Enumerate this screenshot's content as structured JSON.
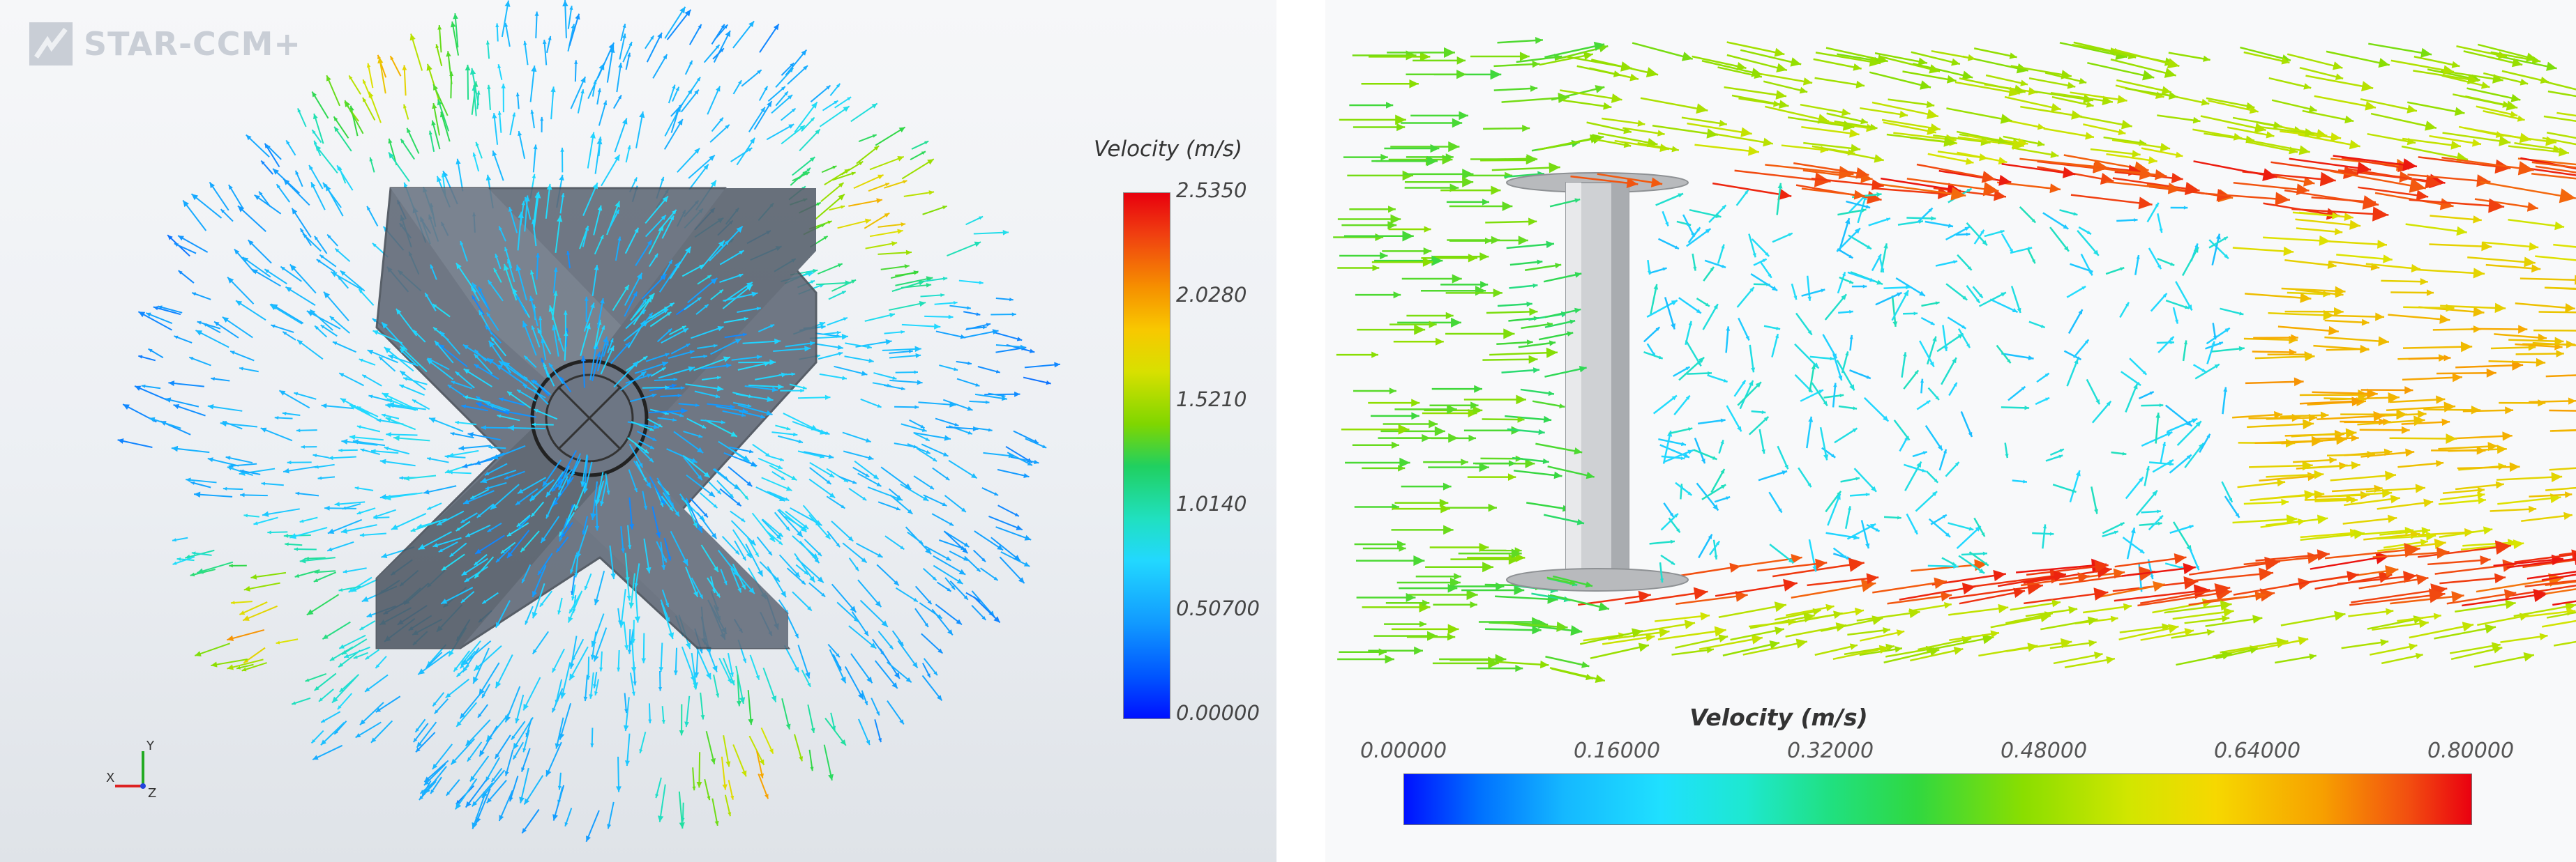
{
  "left": {
    "logo_text": "STAR-CCM+",
    "legend_title": "Velocity (m/s)",
    "legend_ticks": [
      "2.5350",
      "2.0280",
      "1.5210",
      "1.0140",
      "0.50700",
      "0.00000"
    ],
    "axis_labels": {
      "x": "X",
      "y": "Y",
      "z": "Z"
    }
  },
  "right": {
    "legend_title": "Velocity (m/s)",
    "legend_ticks": [
      "0.00000",
      "0.16000",
      "0.32000",
      "0.48000",
      "0.64000",
      "0.80000"
    ]
  },
  "colors": {
    "blade": "#5e6775",
    "cylinder": "#c9cbce",
    "low": "#0011ff",
    "mid": "#20e0c0",
    "high": "#e8000e"
  }
}
